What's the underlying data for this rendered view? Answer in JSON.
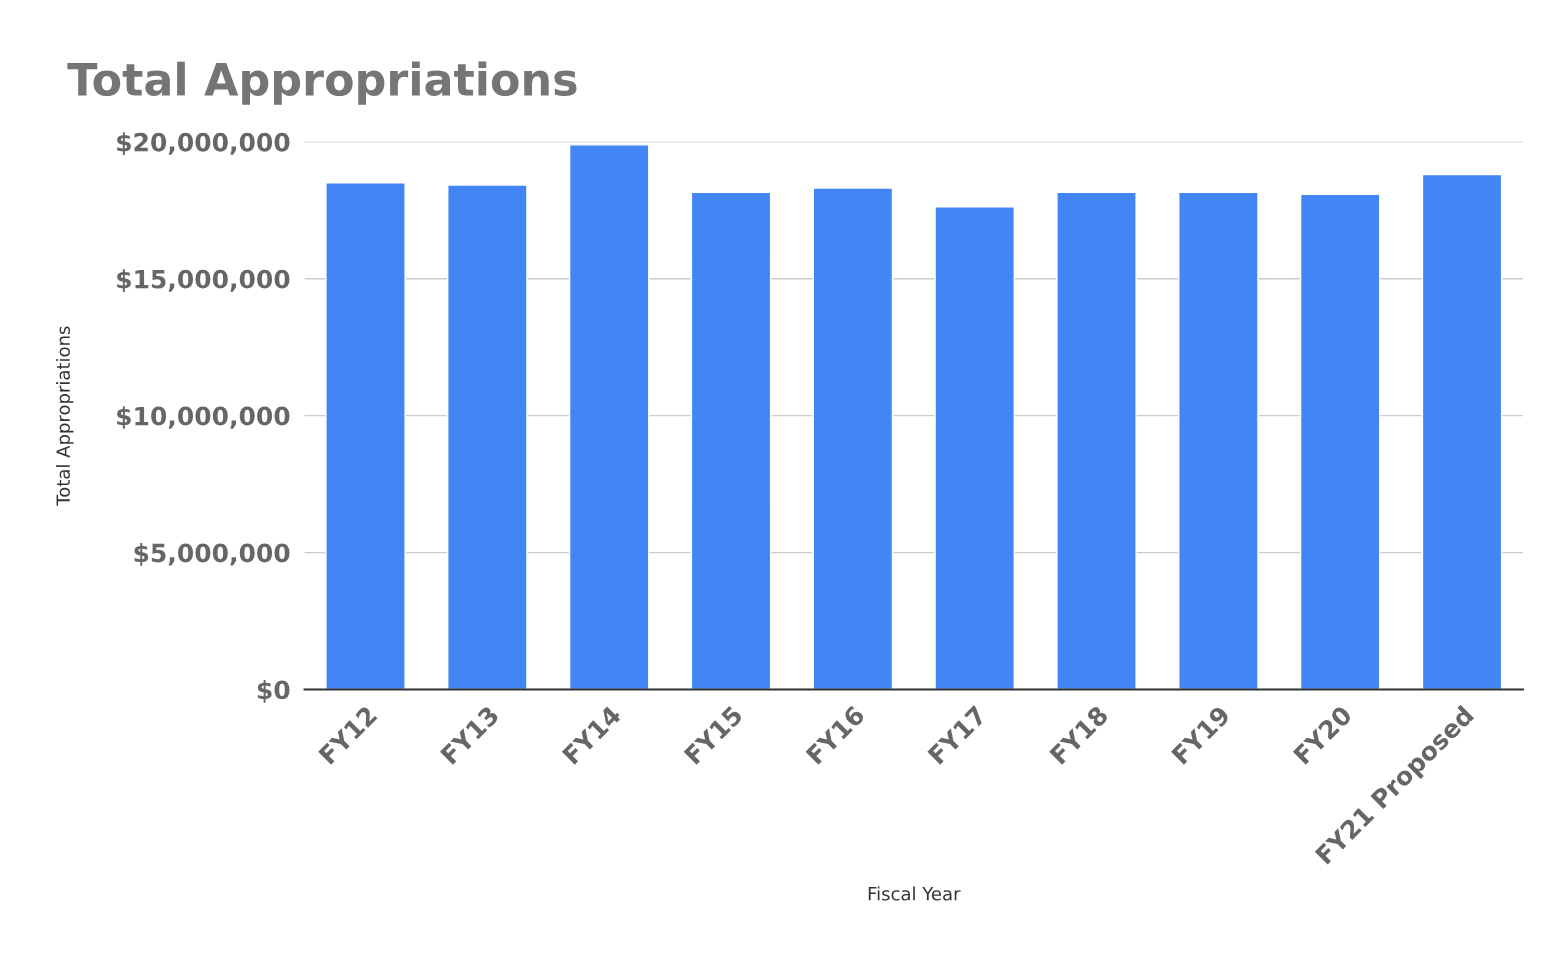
{
  "chart_data": {
    "type": "bar",
    "title": "Total Appropriations",
    "xlabel": "Fiscal Year",
    "ylabel": "Total Appropriations",
    "categories": [
      "FY12",
      "FY13",
      "FY14",
      "FY15",
      "FY16",
      "FY17",
      "FY18",
      "FY19",
      "FY20",
      "FY21 Proposed"
    ],
    "values": [
      18500000,
      18420000,
      19890000,
      18160000,
      18310000,
      17630000,
      18160000,
      18160000,
      18080000,
      18800000
    ],
    "color": "#4285f4",
    "ylim": [
      0,
      20000000
    ],
    "yticks": [
      {
        "value": 0,
        "label": "$0"
      },
      {
        "value": 5000000,
        "label": "$5,000,000"
      },
      {
        "value": 10000000,
        "label": "$10,000,000"
      },
      {
        "value": 15000000,
        "label": "$15,000,000"
      },
      {
        "value": 20000000,
        "label": "$20,000,000"
      }
    ],
    "grid": "y",
    "legend": false
  }
}
